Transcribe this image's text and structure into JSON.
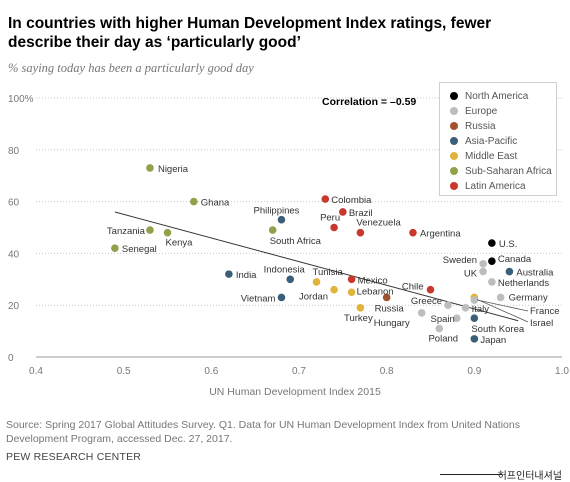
{
  "header": {
    "title": "In countries with higher Human Development Index ratings, fewer describe their day as ‘particularly good’",
    "subtitle": "% saying today has been a particularly good day"
  },
  "footer": {
    "source": "Source: Spring 2017 Global Attitudes Survey. Q1. Data for UN Human Development Index from United Nations Development Program, accessed Dec. 27, 2017.",
    "org": "PEW RESEARCH CENTER",
    "watermark": "허프인터내셔널"
  },
  "chart_data": {
    "type": "scatter",
    "xlabel": "UN Human Development Index 2015",
    "ylabel": "",
    "xlim": [
      0.4,
      1.0
    ],
    "ylim": [
      0,
      100
    ],
    "x_ticks": [
      "0.4",
      "0.5",
      "0.6",
      "0.7",
      "0.8",
      "0.9",
      "1.0"
    ],
    "y_ticks": [
      "0",
      "20",
      "40",
      "60",
      "80",
      "100%"
    ],
    "grid": "horizontal dotted",
    "annotation": "Correlation = –0.59",
    "trendline": [
      [
        0.49,
        56
      ],
      [
        0.95,
        14
      ]
    ],
    "legend_position": "top-right",
    "regions": [
      {
        "name": "North America",
        "color": "#000000"
      },
      {
        "name": "Europe",
        "color": "#bdbdbd"
      },
      {
        "name": "Russia",
        "color": "#a0522d"
      },
      {
        "name": "Asia-Pacific",
        "color": "#3b5f78"
      },
      {
        "name": "Middle East",
        "color": "#e0b43a"
      },
      {
        "name": "Sub-Saharan Africa",
        "color": "#8fa14a"
      },
      {
        "name": "Latin America",
        "color": "#c8382c"
      }
    ],
    "points": [
      {
        "label": "Nigeria",
        "x": 0.53,
        "y": 73,
        "region": "Sub-Saharan Africa"
      },
      {
        "label": "Ghana",
        "x": 0.58,
        "y": 60,
        "region": "Sub-Saharan Africa"
      },
      {
        "label": "Tanzania",
        "x": 0.53,
        "y": 49,
        "region": "Sub-Saharan Africa"
      },
      {
        "label": "Kenya",
        "x": 0.55,
        "y": 48,
        "region": "Sub-Saharan Africa"
      },
      {
        "label": "Senegal",
        "x": 0.49,
        "y": 42,
        "region": "Sub-Saharan Africa"
      },
      {
        "label": "South Africa",
        "x": 0.67,
        "y": 49,
        "region": "Sub-Saharan Africa"
      },
      {
        "label": "Philippines",
        "x": 0.68,
        "y": 53,
        "region": "Asia-Pacific"
      },
      {
        "label": "India",
        "x": 0.62,
        "y": 32,
        "region": "Asia-Pacific"
      },
      {
        "label": "Indonesia",
        "x": 0.69,
        "y": 30,
        "region": "Asia-Pacific"
      },
      {
        "label": "Vietnam",
        "x": 0.68,
        "y": 23,
        "region": "Asia-Pacific"
      },
      {
        "label": "Australia",
        "x": 0.94,
        "y": 33,
        "region": "Asia-Pacific"
      },
      {
        "label": "South Korea",
        "x": 0.9,
        "y": 15,
        "region": "Asia-Pacific"
      },
      {
        "label": "Japan",
        "x": 0.9,
        "y": 7,
        "region": "Asia-Pacific"
      },
      {
        "label": "Colombia",
        "x": 0.73,
        "y": 61,
        "region": "Latin America"
      },
      {
        "label": "Brazil",
        "x": 0.75,
        "y": 56,
        "region": "Latin America"
      },
      {
        "label": "Peru",
        "x": 0.74,
        "y": 50,
        "region": "Latin America"
      },
      {
        "label": "Venezuela",
        "x": 0.77,
        "y": 48,
        "region": "Latin America"
      },
      {
        "label": "Argentina",
        "x": 0.83,
        "y": 48,
        "region": "Latin America"
      },
      {
        "label": "Mexico",
        "x": 0.76,
        "y": 30,
        "region": "Latin America"
      },
      {
        "label": "Chile",
        "x": 0.85,
        "y": 26,
        "region": "Latin America"
      },
      {
        "label": "Tunisia",
        "x": 0.72,
        "y": 29,
        "region": "Middle East"
      },
      {
        "label": "Jordan",
        "x": 0.74,
        "y": 26,
        "region": "Middle East"
      },
      {
        "label": "Lebanon",
        "x": 0.76,
        "y": 25,
        "region": "Middle East"
      },
      {
        "label": "Turkey",
        "x": 0.77,
        "y": 19,
        "region": "Middle East"
      },
      {
        "label": "Israel",
        "x": 0.9,
        "y": 23,
        "region": "Middle East"
      },
      {
        "label": "Russia",
        "x": 0.8,
        "y": 23,
        "region": "Russia"
      },
      {
        "label": "U.S.",
        "x": 0.92,
        "y": 44,
        "region": "North America"
      },
      {
        "label": "Canada",
        "x": 0.92,
        "y": 37,
        "region": "North America"
      },
      {
        "label": "Sweden",
        "x": 0.91,
        "y": 36,
        "region": "Europe"
      },
      {
        "label": "UK",
        "x": 0.91,
        "y": 33,
        "region": "Europe"
      },
      {
        "label": "Netherlands",
        "x": 0.92,
        "y": 29,
        "region": "Europe"
      },
      {
        "label": "Germany",
        "x": 0.93,
        "y": 23,
        "region": "Europe"
      },
      {
        "label": "Greece",
        "x": 0.87,
        "y": 20,
        "region": "Europe"
      },
      {
        "label": "Italy",
        "x": 0.89,
        "y": 19,
        "region": "Europe"
      },
      {
        "label": "France",
        "x": 0.9,
        "y": 22,
        "region": "Europe"
      },
      {
        "label": "Hungary",
        "x": 0.84,
        "y": 17,
        "region": "Europe"
      },
      {
        "label": "Spain",
        "x": 0.88,
        "y": 15,
        "region": "Europe"
      },
      {
        "label": "Poland",
        "x": 0.86,
        "y": 11,
        "region": "Europe"
      }
    ]
  }
}
